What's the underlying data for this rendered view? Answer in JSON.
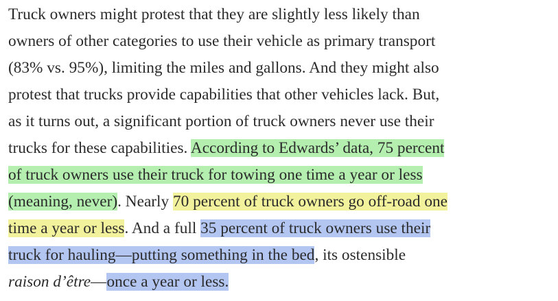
{
  "paragraph": {
    "lines": [
      [
        {
          "text": "Truck owners might protest that they are slightly less likely than",
          "style": "plain"
        }
      ],
      [
        {
          "text": "owners of other categories to use their vehicle as primary transport",
          "style": "plain"
        }
      ],
      [
        {
          "text": "(83% vs. 95%), limiting the miles and gallons. And they might also",
          "style": "plain"
        }
      ],
      [
        {
          "text": "protest that trucks provide capabilities that other vehicles lack. But,",
          "style": "plain"
        }
      ],
      [
        {
          "text": "as it turns out, a significant portion of truck owners never use their",
          "style": "plain"
        }
      ],
      [
        {
          "text": "trucks for these capabilities. ",
          "style": "plain"
        },
        {
          "text": "According to Edwards’ data, 75 percent",
          "style": "green"
        }
      ],
      [
        {
          "text": "of truck owners use their truck for towing one time a year or less",
          "style": "green"
        }
      ],
      [
        {
          "text": "(meaning, never)",
          "style": "green"
        },
        {
          "text": ". Nearly ",
          "style": "plain"
        },
        {
          "text": "70 percent of truck owners go off-road one",
          "style": "yellow"
        }
      ],
      [
        {
          "text": "time a year or less",
          "style": "yellow"
        },
        {
          "text": ". And a full ",
          "style": "plain"
        },
        {
          "text": "35 percent of truck owners use their",
          "style": "blue"
        }
      ],
      [
        {
          "text": "truck for hauling—putting something in the bed",
          "style": "blue"
        },
        {
          "text": ", its ostensible",
          "style": "plain"
        }
      ],
      [
        {
          "text": "raison d’être",
          "style": "italic"
        },
        {
          "text": "—",
          "style": "plain"
        },
        {
          "text": "once a year or less.",
          "style": "blue"
        }
      ]
    ]
  }
}
